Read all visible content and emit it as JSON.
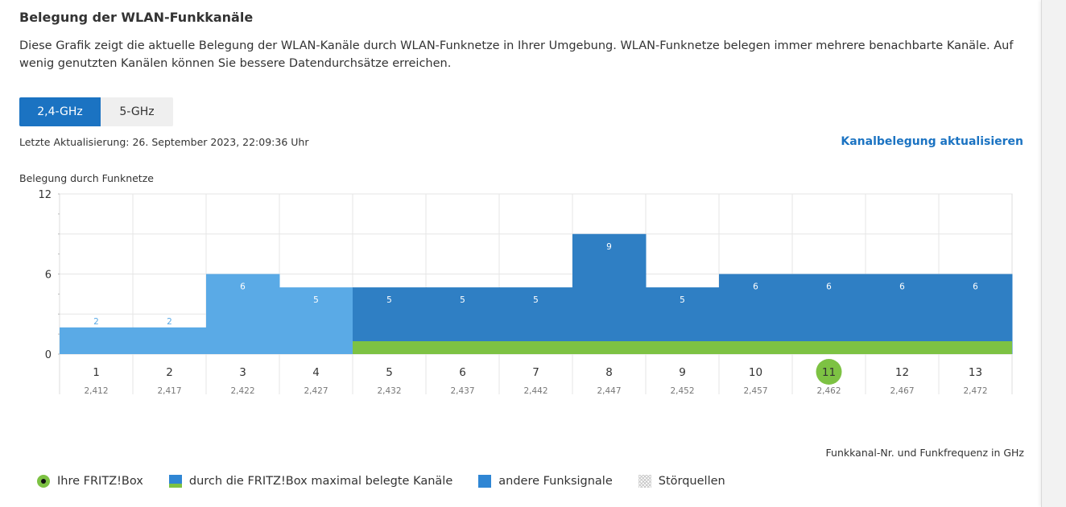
{
  "title": "Belegung der WLAN-Funkkanäle",
  "description": "Diese Grafik zeigt die aktuelle Belegung der WLAN-Kanäle durch WLAN-Funknetze in Ihrer Umgebung. WLAN-Funknetze belegen immer mehrere benachbarte Kanäle. Auf wenig genutzten Kanälen können Sie bessere Datendurchsätze erreichen.",
  "tabs": [
    {
      "label": "2,4-GHz",
      "active": true
    },
    {
      "label": "5-GHz",
      "active": false
    }
  ],
  "last_update": "Letzte Aktualisierung: 26. September 2023, 22:09:36 Uhr",
  "refresh_link": "Kanalbelegung aktualisieren",
  "x_caption": "Funkkanal-Nr. und Funkfrequenz in GHz",
  "legend": [
    {
      "icon": "fritzbox-dot-icon",
      "label": "Ihre FRITZ!Box"
    },
    {
      "icon": "max-used-channels-swatch",
      "label": "durch die FRITZ!Box maximal belegte Kanäle"
    },
    {
      "icon": "other-signals-swatch",
      "label": "andere Funksignale"
    },
    {
      "icon": "interference-swatch",
      "label": "Störquellen"
    }
  ],
  "colors": {
    "accent": "#1b73c2",
    "bar_dark": "#2f7fc4",
    "bar_light": "#5aaae6",
    "fritz_green": "#7dc243",
    "grid": "#e6e6e6"
  },
  "chart_data": {
    "type": "bar",
    "title": "",
    "ylabel": "Belegung durch Funknetze",
    "xlabel": "Funkkanal-Nr. und Funkfrequenz in GHz",
    "ylim": [
      0,
      12
    ],
    "yticks": [
      0,
      6,
      12
    ],
    "categories": [
      "1",
      "2",
      "3",
      "4",
      "5",
      "6",
      "7",
      "8",
      "9",
      "10",
      "11",
      "12",
      "13"
    ],
    "frequencies": [
      "2,412",
      "2,417",
      "2,422",
      "2,427",
      "2,432",
      "2,437",
      "2,442",
      "2,447",
      "2,452",
      "2,457",
      "2,462",
      "2,467",
      "2,472"
    ],
    "values": [
      2,
      2,
      6,
      5,
      5,
      5,
      5,
      9,
      5,
      6,
      6,
      6,
      6
    ],
    "fritzbox_max_channels": [
      "5",
      "6",
      "7",
      "8",
      "9",
      "10",
      "11",
      "12",
      "13"
    ],
    "fritzbox_channel": "11",
    "grid": true
  }
}
